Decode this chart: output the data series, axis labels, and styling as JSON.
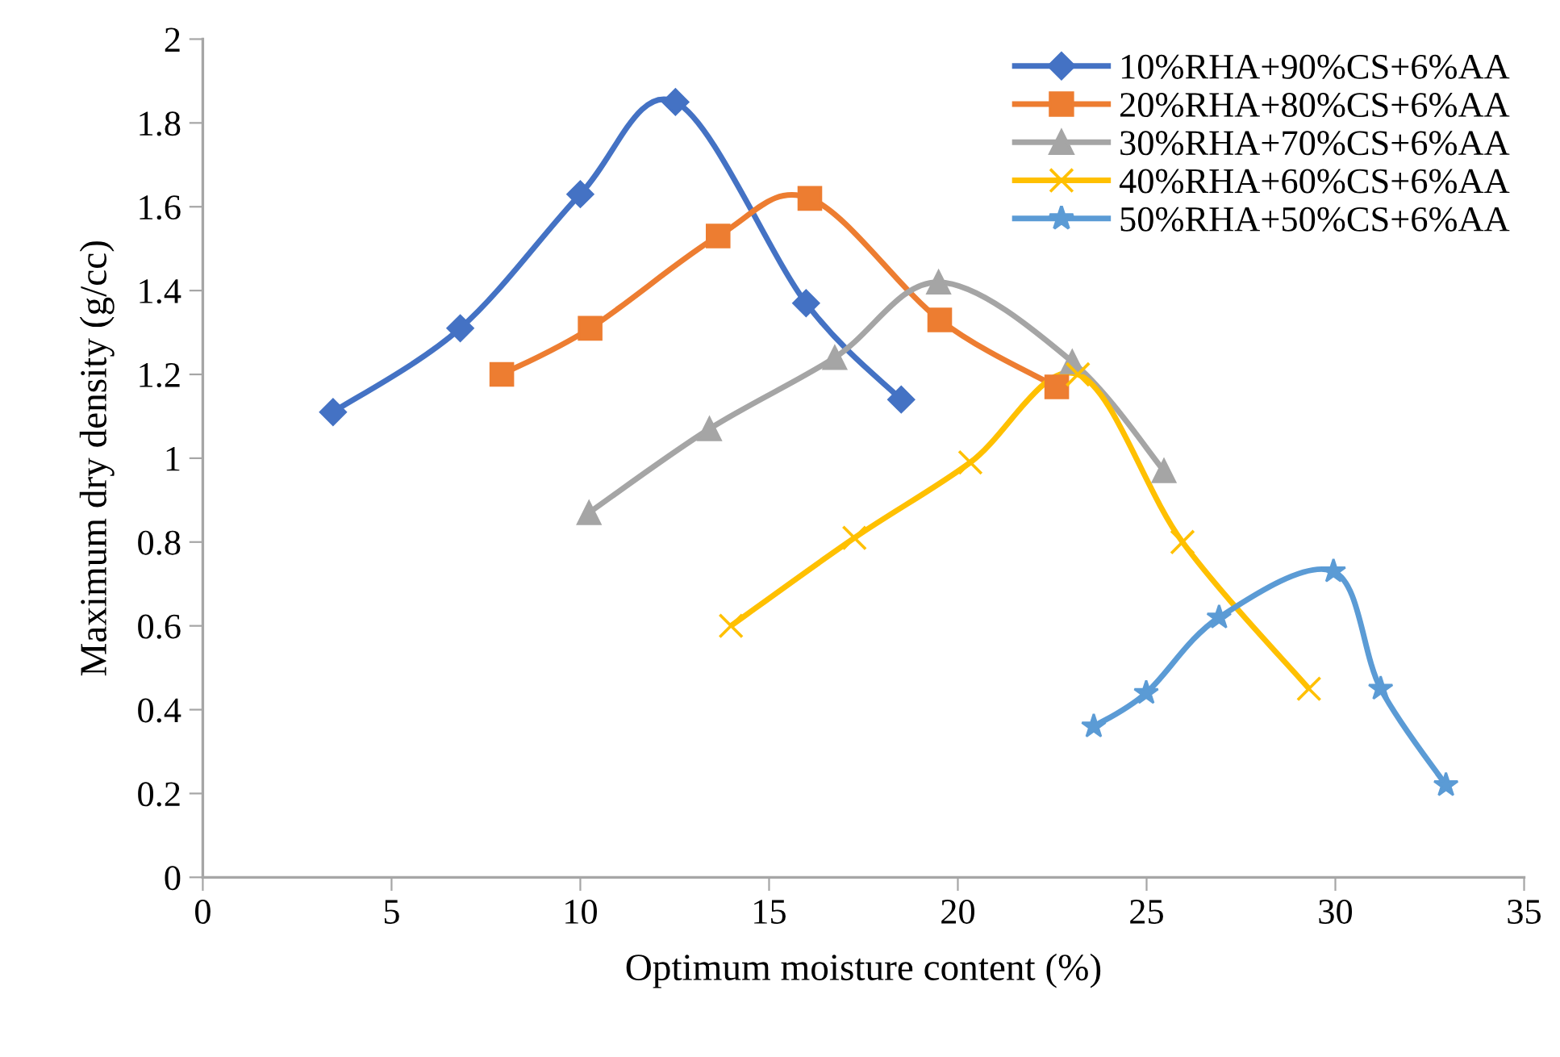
{
  "chart_data": {
    "type": "line",
    "xlabel": "Optimum moisture content (%)",
    "ylabel": "Maximum dry density (g/cc)",
    "xlim": [
      0,
      35
    ],
    "xticks": [
      0,
      5,
      10,
      15,
      20,
      25,
      30,
      35
    ],
    "ylim": [
      0,
      2
    ],
    "yticks": [
      0,
      0.2,
      0.4,
      0.6,
      0.8,
      1,
      1.2,
      1.4,
      1.6,
      1.8,
      2
    ],
    "grid": false,
    "legend": "top right",
    "series": [
      {
        "name": "10%RHA+90%CS+6%AA",
        "color": "#4472c4",
        "marker": "diamond",
        "x": [
          3.45,
          6.82,
          10.0,
          12.52,
          15.98,
          18.5
        ],
        "values": [
          1.11,
          1.31,
          1.63,
          1.85,
          1.37,
          1.14
        ]
      },
      {
        "name": "20%RHA+80%CS+6%AA",
        "color": "#ed7d31",
        "marker": "square",
        "x": [
          7.92,
          10.26,
          13.65,
          16.08,
          19.52,
          22.62
        ],
        "values": [
          1.2,
          1.31,
          1.53,
          1.62,
          1.33,
          1.17
        ]
      },
      {
        "name": "30%RHA+70%CS+6%AA",
        "color": "#a5a5a5",
        "marker": "triangle",
        "x": [
          10.23,
          13.42,
          16.74,
          19.49,
          23.03,
          25.46
        ],
        "values": [
          0.87,
          1.07,
          1.24,
          1.42,
          1.23,
          0.97
        ]
      },
      {
        "name": "40%RHA+60%CS+6%AA",
        "color": "#ffc000",
        "marker": "cross",
        "x": [
          13.99,
          17.26,
          20.33,
          23.18,
          25.95,
          29.3
        ],
        "values": [
          0.6,
          0.81,
          0.99,
          1.2,
          0.8,
          0.45
        ]
      },
      {
        "name": "50%RHA+50%CS+6%AA",
        "color": "#5b9bd5",
        "marker": "star",
        "x": [
          23.6,
          24.99,
          26.92,
          29.95,
          31.2,
          32.93
        ],
        "values": [
          0.36,
          0.44,
          0.62,
          0.73,
          0.45,
          0.22
        ]
      }
    ]
  }
}
